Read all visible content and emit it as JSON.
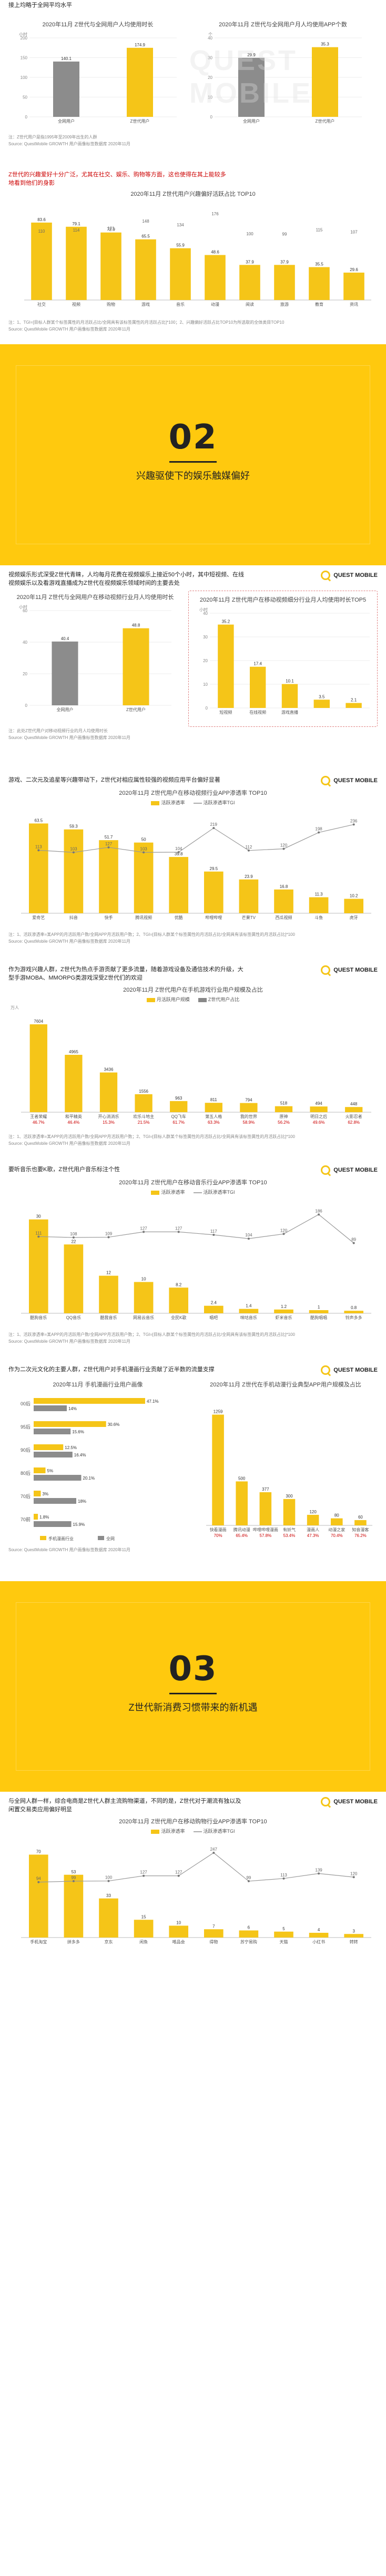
{
  "top_caption": "接上均略于全网平均水平",
  "s1": {
    "chart_a": {
      "title": "2020年11月 Z世代与全网用户人均使用时长",
      "ylabel": "小时"
    },
    "chart_b": {
      "title": "2020年11月 Z世代与全网用户月人均使用APP个数",
      "ylabel": "个"
    },
    "note_a": "注：Z世代用户是指1995年至2009年出生的人群",
    "source_a": "Source: QuestMobile GROWTH 用户画像标签数据库 2020年11月",
    "caption": "Z世代的兴趣爱好十分广泛，尤其在社交、娱乐、购物等方面，这也使得在其上能较多地看到他们的身影",
    "chart_c": {
      "title": "2020年11月 Z世代用户兴趣偏好活跃占比 TOP10"
    },
    "note_c": "注：1、TGI=[目标人群某个标签属性的月活跃占比/全网具有该标签属性的月活跃占比]*100；2、兴趣偏好活跃占比TOP10为所选取的全体类目TOP10",
    "source_c": "Source: QuestMobile GROWTH 用户画像标签数据库 2020年11月"
  },
  "band2": {
    "number": "02",
    "title": "兴趣驱使下的娱乐触媒偏好"
  },
  "s2": {
    "caption": "视频娱乐形式深受Z世代青睐，人均每月花费在视频娱乐上接近50个小时，其中短视频、在线视频娱乐以及看游戏直播成为Z世代在视频娱乐领域时间的主要去处",
    "chart_a": {
      "title": "2020年11月 Z世代与全网用户在移动视频行业月人均使用时长",
      "ylabel": "小时"
    },
    "chart_b": {
      "title": "2020年11月 Z世代用户在移动视频细分行业月人均使用时长TOP5",
      "ylabel": "小时"
    },
    "note": "注：此处Z世代用户对移动视频行业的月人均使用时长",
    "source": "Source: QuestMobile GROWTH 用户画像标签数据库 2020年11月",
    "caption2": "游戏、二次元及追星等兴趣带动下，Z世代对相应属性较强的视频应用平台偏好显著",
    "chart_c": {
      "title": "2020年11月 Z世代用户在移动视频行业APP渗透率 TOP10"
    },
    "note_c": "注：1、活跃渗透率=某APP的月活跃用户数/全网APP月活跃用户数；2、TGI=[目标人群某个标签属性的月活跃占比/全网具有该标签属性的月活跃占比]*100",
    "source_c": "Source: QuestMobile GROWTH 用户画像标签数据库 2020年11月",
    "caption3": "作为游戏兴趣人群，Z世代为热点手游贡献了更多流量，随着游戏设备及通信技术的升级，大型手游MOBA、MMORPG类游戏深受Z世代们的欢迎",
    "chart_d": {
      "title": "2020年11月 Z世代用户在手机游戏行业用户规模及占比"
    },
    "note_d": "注：1、活跃渗透率=某APP的月活跃用户数/全网APP月活跃用户数；2、TGI=[目标人群某个标签属性的月活跃占比/全网具有该标签属性的月活跃占比]*100",
    "source_d": "Source: QuestMobile GROWTH 用户画像标签数据库 2020年11月",
    "caption4": "要听音乐也要K歌，Z世代用户音乐标注个性",
    "chart_e": {
      "title": "2020年11月 Z世代用户在移动音乐行业APP渗透率 TOP10"
    },
    "note_e": "注：1、活跃渗透率=某APP的月活跃用户数/全网APP月活跃用户数；2、TGI=[目标人群某个标签属性的月活跃占比/全网具有该标签属性的月活跃占比]*100",
    "source_e": "Source: QuestMobile GROWTH 用户画像标签数据库 2020年11月",
    "caption5": "作为二次元文化的主要人群，Z世代用户对手机漫画行业贡献了近半数的流量支撑",
    "chart_f": {
      "title": "2020年11月 手机漫画行业用户画像"
    },
    "chart_g": {
      "title": "2020年11月 Z世代在手机动漫行业典型APP用户规模及占比"
    },
    "source_f": "Source: QuestMobile GROWTH 用户画像标签数据库 2020年11月"
  },
  "band3": {
    "number": "03",
    "title": "Z世代新消费习惯带来的新机遇"
  },
  "s3": {
    "caption": "与全网人群一样，综合电商是Z世代人群主流购物渠道，不同的是，Z世代对于潮流有独以及闲置交易类应用偏好明显",
    "chart_a": {
      "title": "2020年11月 Z世代用户在移动购物行业APP渗透率 TOP10"
    }
  },
  "brand": {
    "name": "QUEST MOBILE",
    "watermark": "QUEST MOBILE"
  },
  "legend": {
    "bar": "活跃渗透率",
    "line": "活跃渗透率TGI",
    "bar_alt": "月活跃用户规模",
    "share": "Z世代用户占比"
  },
  "chart_data": [
    {
      "type": "bar",
      "title": "2020年11月 Z世代与全网用户人均使用时长",
      "categories": [
        "全网用户",
        "Z世代用户"
      ],
      "values": [
        140.1,
        174.9
      ],
      "ylim": [
        0,
        200
      ],
      "ylabel": "小时",
      "colors": [
        "#8c8c8c",
        "#f5c518"
      ]
    },
    {
      "type": "bar",
      "title": "2020年11月 Z世代与全网用户月人均使用APP个数",
      "categories": [
        "全网用户",
        "Z世代用户"
      ],
      "values": [
        29.9,
        35.3
      ],
      "ylim": [
        0,
        40
      ],
      "ylabel": "个",
      "colors": [
        "#8c8c8c",
        "#f5c518"
      ]
    },
    {
      "type": "bar",
      "title": "2020年11月 Z世代用户兴趣偏好活跃占比 TOP10",
      "categories": [
        "社交",
        "视频",
        "购物",
        "游戏",
        "音乐",
        "动漫",
        "阅读",
        "旅游",
        "教育",
        "资讯"
      ],
      "values": [
        83.6,
        79.1,
        72.9,
        65.5,
        55.9,
        48.6,
        37.9,
        37.9,
        35.5,
        29.6
      ],
      "tgi": [
        110,
        114,
        121,
        148,
        134,
        176,
        100,
        99,
        115,
        107
      ],
      "ylim": [
        0,
        100
      ]
    },
    {
      "type": "bar",
      "title": "2020年11月 Z世代与全网用户在移动视频行业月人均使用时长",
      "categories": [
        "全网用户",
        "Z世代用户"
      ],
      "values": [
        40.4,
        48.8
      ],
      "ylim": [
        0,
        60
      ],
      "ylabel": "小时",
      "colors": [
        "#8c8c8c",
        "#f5c518"
      ]
    },
    {
      "type": "bar",
      "title": "2020年11月 Z世代用户在移动视频细分行业月人均使用时长TOP5",
      "categories": [
        "短视频",
        "在线视频",
        "游戏直播",
        "",
        ""
      ],
      "values": [
        35.2,
        17.4,
        10.1,
        3.5,
        2.1
      ],
      "ylim": [
        0,
        40
      ],
      "ylabel": "小时"
    },
    {
      "type": "bar",
      "title": "2020年11月 Z世代用户在移动视频行业APP渗透率 TOP10",
      "categories": [
        "爱奇艺",
        "抖音",
        "快手",
        "腾讯视频",
        "优酷",
        "哔哩哔哩",
        "芒果TV",
        "西瓜视频",
        "斗鱼",
        "虎牙"
      ],
      "values": [
        63.5,
        59.3,
        51.7,
        50.0,
        39.8,
        29.5,
        23.9,
        16.8,
        11.3,
        10.2
      ],
      "tgi": [
        113,
        103,
        127,
        103,
        104,
        219,
        112,
        120,
        198,
        236
      ],
      "ylim": [
        0,
        70
      ]
    },
    {
      "type": "bar",
      "title": "2020年11月 Z世代用户在手机游戏行业用户规模及占比",
      "categories": [
        "王者荣耀",
        "和平精英",
        "开心消消乐",
        "欢乐斗地主",
        "QQ飞车",
        "第五人格",
        "我的世界",
        "原神",
        "明日之后",
        "火影忍者"
      ],
      "values": [
        7604,
        4965,
        3436,
        1556,
        963,
        811,
        794,
        518,
        494,
        448
      ],
      "share": [
        46.7,
        46.4,
        15.3,
        21.5,
        61.7,
        63.3,
        58.9,
        56.2,
        49.6,
        62.8
      ],
      "ylabel": "万人"
    },
    {
      "type": "bar",
      "title": "2020年11月 Z世代用户在移动音乐行业APP渗透率 TOP10",
      "categories": [
        "酷狗音乐",
        "QQ音乐",
        "酷我音乐",
        "网易云音乐",
        "全民K歌",
        "唱吧",
        "咪咕音乐",
        "虾米音乐",
        "酷狗唱唱",
        "铃声多多"
      ],
      "values": [
        30.0,
        22.0,
        12.0,
        10.0,
        8.2,
        2.4,
        1.4,
        1.2,
        1.0,
        0.8
      ],
      "tgi": [
        111,
        108,
        109,
        127,
        127,
        117,
        104,
        120,
        186,
        89
      ],
      "ylim": [
        0,
        35
      ]
    },
    {
      "type": "bar",
      "title": "2020年11月 手机漫画行业用户画像",
      "categories": [
        "00后",
        "95后",
        "90后",
        "80后",
        "70后",
        "70前"
      ],
      "series": [
        {
          "name": "手机漫画行业",
          "values": [
            47.1,
            30.6,
            12.5,
            5.0,
            3.0,
            1.8
          ]
        },
        {
          "name": "全网",
          "values": [
            14.0,
            15.6,
            16.4,
            20.1,
            18.0,
            15.9
          ]
        }
      ],
      "ylim": [
        0,
        60
      ]
    },
    {
      "type": "bar",
      "title": "2020年11月 Z世代在手机动漫行业典型APP用户规模及占比",
      "categories": [
        "快看漫画",
        "腾讯动漫",
        "哔哩哔哩漫画",
        "有妖气",
        "漫画人",
        "动漫之家",
        "知音漫客"
      ],
      "values": [
        1259,
        500,
        377,
        300,
        120,
        80,
        60
      ],
      "share": [
        70.0,
        65.4,
        57.8,
        53.4,
        47.3,
        70.4,
        76.2
      ]
    },
    {
      "type": "bar",
      "title": "2020年11月 Z世代用户在移动购物行业APP渗透率 TOP10",
      "categories": [
        "手机淘宝",
        "拼多多",
        "京东",
        "闲鱼",
        "唯品会",
        "得物",
        "苏宁易购",
        "天猫",
        "小红书",
        "转转"
      ],
      "values": [
        70.0,
        53.0,
        33.0,
        15.0,
        10.0,
        7.0,
        6.0,
        5.0,
        4.0,
        3.0
      ],
      "tgi": [
        94,
        99,
        100,
        127,
        127,
        247,
        99,
        113,
        139,
        120
      ],
      "ylim": [
        0,
        80
      ]
    }
  ]
}
